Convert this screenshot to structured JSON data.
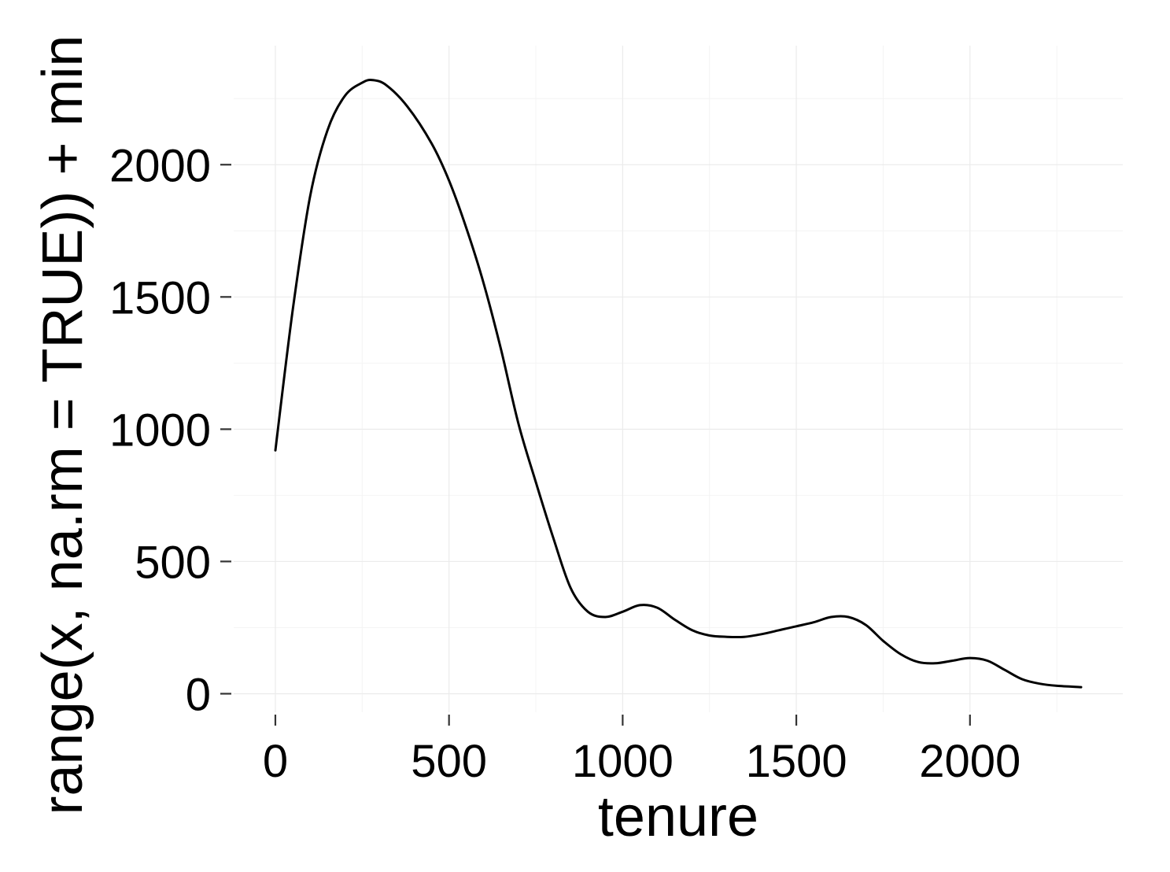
{
  "chart_data": {
    "type": "line",
    "title": "",
    "xlabel": "tenure",
    "ylabel": "range(x, na.rm = TRUE)) + min",
    "xlim": [
      -120,
      2440
    ],
    "ylim": [
      -70,
      2450
    ],
    "x_ticks": [
      0,
      500,
      1000,
      1500,
      2000
    ],
    "y_ticks": [
      0,
      500,
      1000,
      1500,
      2000
    ],
    "x_tick_labels": [
      "0",
      "500",
      "1000",
      "1500",
      "2000"
    ],
    "y_tick_labels": [
      "0",
      "500",
      "1000",
      "1500",
      "2000"
    ],
    "grid": true,
    "legend": "none",
    "line_color": "#000000",
    "series": [
      {
        "x": [
          0,
          50,
          100,
          150,
          200,
          250,
          280,
          320,
          380,
          450,
          500,
          550,
          600,
          650,
          700,
          750,
          800,
          850,
          900,
          950,
          1000,
          1050,
          1100,
          1150,
          1200,
          1250,
          1300,
          1350,
          1400,
          1450,
          1500,
          1550,
          1600,
          1650,
          1700,
          1750,
          1800,
          1850,
          1900,
          1950,
          2000,
          2050,
          2100,
          2150,
          2200,
          2250,
          2320
        ],
        "y": [
          920,
          1450,
          1880,
          2130,
          2260,
          2310,
          2320,
          2300,
          2220,
          2080,
          1940,
          1760,
          1550,
          1300,
          1020,
          800,
          590,
          400,
          310,
          290,
          310,
          335,
          325,
          280,
          240,
          220,
          215,
          215,
          225,
          240,
          255,
          270,
          290,
          290,
          260,
          200,
          150,
          120,
          115,
          125,
          135,
          125,
          90,
          55,
          38,
          30,
          25
        ]
      }
    ]
  }
}
